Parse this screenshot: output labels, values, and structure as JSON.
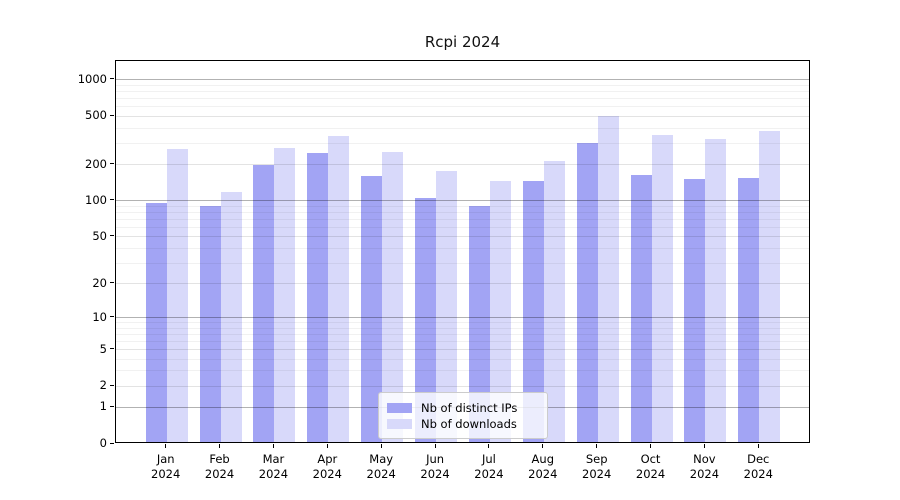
{
  "title": "Rcpi 2024",
  "chart_data": {
    "type": "bar",
    "title": "Rcpi 2024",
    "categories": [
      "Jan 2024",
      "Feb 2024",
      "Mar 2024",
      "Apr 2024",
      "May 2024",
      "Jun 2024",
      "Jul 2024",
      "Aug 2024",
      "Sep 2024",
      "Oct 2024",
      "Nov 2024",
      "Dec 2024"
    ],
    "series": [
      {
        "name": "Nb of distinct IPs",
        "color": "#a2a4f4",
        "values": [
          92,
          88,
          190,
          242,
          155,
          101,
          87,
          141,
          290,
          159,
          145,
          148
        ]
      },
      {
        "name": "Nb of downloads",
        "color": "#d8d9fa",
        "values": [
          257,
          114,
          264,
          332,
          243,
          169,
          142,
          207,
          487,
          340,
          315,
          368
        ]
      }
    ],
    "xlabel": "",
    "ylabel": "",
    "y_axis": {
      "scale": "log1p",
      "ticks": [
        0,
        1,
        2,
        5,
        10,
        20,
        50,
        100,
        200,
        500,
        1000
      ],
      "min": 0,
      "max": 1430
    },
    "grid": true,
    "legend_position": "lower center"
  }
}
